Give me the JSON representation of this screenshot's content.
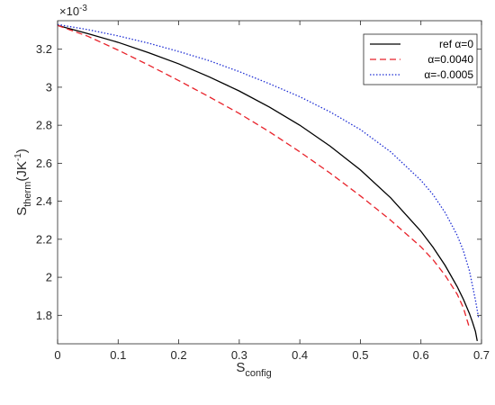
{
  "chart_data": {
    "type": "line",
    "xlim": [
      0,
      0.7
    ],
    "ylim": [
      0.00165,
      0.00335
    ],
    "xticks": [
      0,
      0.1,
      0.2,
      0.3,
      0.4,
      0.5,
      0.6,
      0.7
    ],
    "xtick_labels": [
      "0",
      "0.1",
      "0.2",
      "0.3",
      "0.4",
      "0.5",
      "0.6",
      "0.7"
    ],
    "yticks": [
      1.8,
      2.0,
      2.2,
      2.4,
      2.6,
      2.8,
      3.0,
      3.2
    ],
    "ytick_labels": [
      "1.8",
      "2",
      "2.2",
      "2.4",
      "2.6",
      "2.8",
      "3",
      "3.2"
    ],
    "y_exponent": {
      "base": "×10",
      "power": "-3"
    },
    "xlabel": {
      "base": "S",
      "sub": "config"
    },
    "ylabel": {
      "base": "S",
      "sub": "therm",
      "unit_open": "(JK",
      "unit_sup": "-1",
      "unit_close": ")"
    },
    "grid": false,
    "box": true,
    "legend_position": "top-right",
    "series": [
      {
        "name": "ref α=0",
        "color": "#000000",
        "dash": "solid",
        "x": [
          0,
          0.05,
          0.1,
          0.15,
          0.2,
          0.25,
          0.3,
          0.35,
          0.4,
          0.45,
          0.5,
          0.55,
          0.6,
          0.62,
          0.64,
          0.66,
          0.67,
          0.68,
          0.685,
          0.69,
          0.693
        ],
        "y": [
          0.003325,
          0.003282,
          0.003236,
          0.003182,
          0.003123,
          0.003055,
          0.00298,
          0.002895,
          0.0028,
          0.00269,
          0.002565,
          0.002418,
          0.002242,
          0.002158,
          0.002062,
          0.00195,
          0.001885,
          0.00181,
          0.001765,
          0.001715,
          0.001665
        ]
      },
      {
        "name": "α=0.0040",
        "color": "#e8222a",
        "dash": "dashed",
        "x": [
          0,
          0.05,
          0.1,
          0.15,
          0.2,
          0.25,
          0.3,
          0.35,
          0.4,
          0.45,
          0.5,
          0.55,
          0.6,
          0.62,
          0.64,
          0.66,
          0.67,
          0.68
        ],
        "y": [
          0.003325,
          0.003268,
          0.003195,
          0.003117,
          0.003035,
          0.00295,
          0.002862,
          0.002765,
          0.00266,
          0.002548,
          0.002428,
          0.0023,
          0.00216,
          0.002092,
          0.00201,
          0.00191,
          0.00184,
          0.001735
        ]
      },
      {
        "name": "α=-0.0005",
        "color": "#1f2fd4",
        "dash": "dotted",
        "x": [
          0,
          0.05,
          0.1,
          0.15,
          0.2,
          0.25,
          0.3,
          0.35,
          0.4,
          0.45,
          0.5,
          0.55,
          0.6,
          0.62,
          0.64,
          0.66,
          0.67,
          0.68,
          0.69,
          0.695
        ],
        "y": [
          0.00333,
          0.003303,
          0.00327,
          0.003232,
          0.003188,
          0.00314,
          0.003082,
          0.003018,
          0.00295,
          0.00287,
          0.002777,
          0.00266,
          0.00251,
          0.002435,
          0.00234,
          0.00222,
          0.00214,
          0.002035,
          0.00188,
          0.00179
        ]
      }
    ]
  }
}
